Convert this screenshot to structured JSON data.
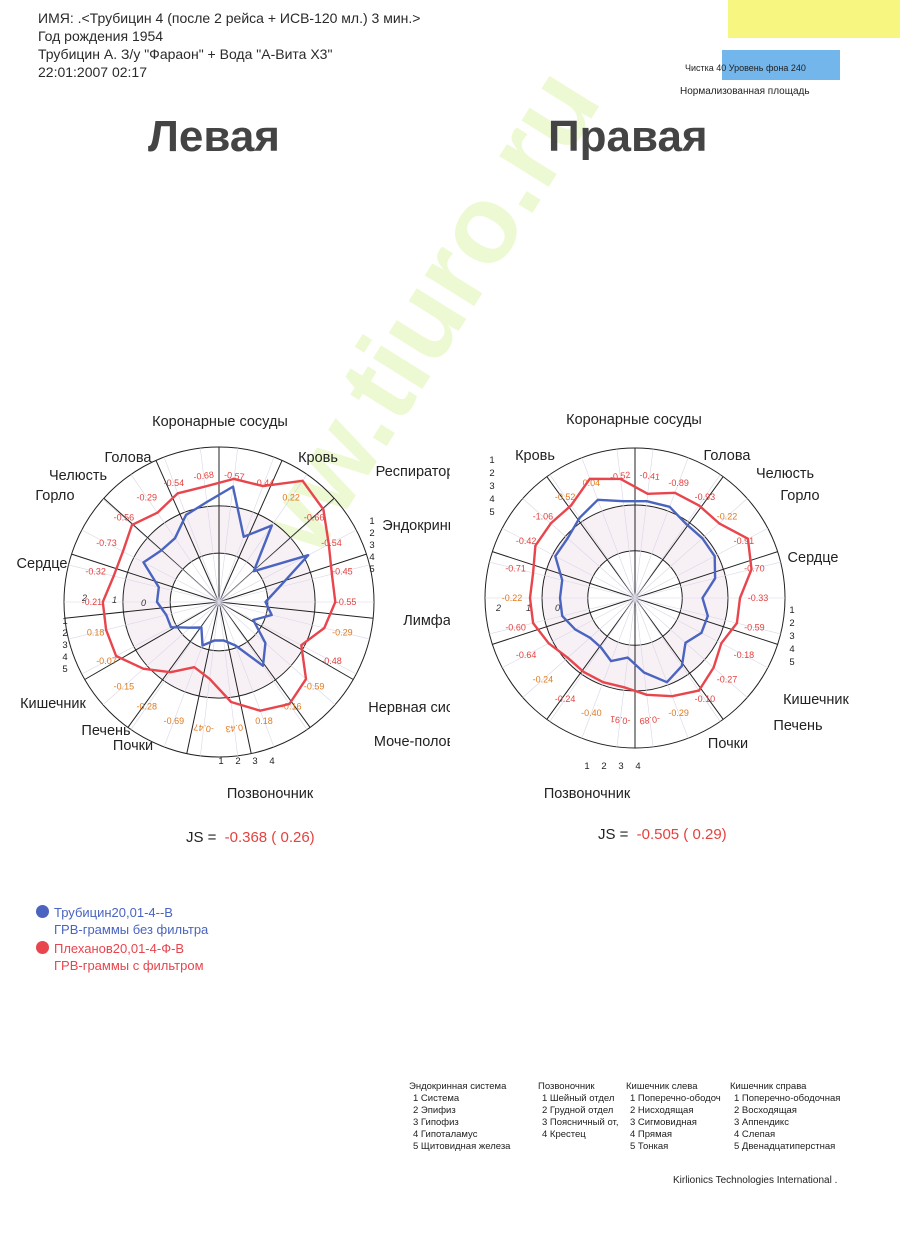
{
  "header": {
    "line1": "ИМЯ:   .<Трубицин 4 (после 2 рейса + ИСВ-120 мл.) 3 мин.>",
    "line2": "Год рождения 1954",
    "line3": "Трубицин А. З/у \"Фараон\" + Вода \"А-Вита Х3\"",
    "line4": "22:01:2007   02:17"
  },
  "meta": {
    "purity": "Чистка  40   Уровень фона  240",
    "area": "Нормализованная площадь"
  },
  "watermark": "www.tiuro.ru",
  "colors": {
    "blue": "#4a64c0",
    "red": "#e8454c",
    "value_red": "#e3423f",
    "value_orange": "#e07a1e"
  },
  "chart_data": [
    {
      "type": "radar",
      "title": "Левая",
      "js_label": "JS =",
      "js_value": "-0.368 ( 0.26)",
      "rings": [
        "0",
        "1",
        "2"
      ],
      "sector_labels": [
        {
          "text": "Коронарные сосуды"
        },
        {
          "text": "Кровь"
        },
        {
          "text": "Респираторная"
        },
        {
          "text": "Эндокринная"
        },
        {
          "text": "Лимфа"
        },
        {
          "text": "Нервная система"
        },
        {
          "text": "Моче-половая"
        },
        {
          "text": "Позвоночник"
        },
        {
          "text": "Почки"
        },
        {
          "text": "Печень"
        },
        {
          "text": "Кишечник"
        },
        {
          "text": "Сердце"
        },
        {
          "text": "Горло"
        },
        {
          "text": "Челюсть"
        },
        {
          "text": "Голова"
        }
      ],
      "values": [
        "-0.57",
        "-0.44",
        "0.22",
        "-0.66",
        "-0.54",
        "-0.45",
        "-0.55",
        "-0.29",
        "-0.48",
        "-0.59",
        "-0.16",
        "0.18",
        "0.43",
        "-0.47",
        "-0.69",
        "-0.28",
        "-0.15",
        "-0.07",
        "0.18",
        "-0.21",
        "-0.32",
        "-0.73",
        "-0.56",
        "-0.29",
        "-0.54",
        "-0.68"
      ],
      "value_orange_idx": [
        2,
        7,
        9,
        10,
        11,
        12,
        13,
        14,
        15,
        16,
        17,
        18
      ],
      "sub_index_groups": [
        {
          "labels": [
            "1",
            "2",
            "3",
            "4",
            "5"
          ]
        },
        {
          "labels": [
            "1",
            "2",
            "3",
            "4"
          ]
        },
        {
          "labels": [
            "1",
            "2",
            "3",
            "4",
            "5"
          ]
        }
      ],
      "series": [
        {
          "name": "Трубицин20,01-4--В",
          "color": "#4a64c0",
          "values": [
            1.5,
            0.9,
            1.2,
            0.6,
            1.3,
            0.8,
            0.6,
            0.7,
            0.5,
            0.8,
            1.0,
            0.6,
            0.5,
            0.5,
            0.6,
            0.4,
            0.5,
            0.7,
            0.7,
            0.8,
            0.8,
            1.1,
            1.0,
            1.0,
            1.2,
            1.3
          ]
        },
        {
          "name": "Плеханов20,01-4-Ф-В",
          "color": "#e8454c",
          "values": [
            1.6,
            1.6,
            1.9,
            1.8,
            1.6,
            1.5,
            1.5,
            1.4,
            1.2,
            1.5,
            1.6,
            1.5,
            1.3,
            1.0,
            0.9,
            1.1,
            1.3,
            1.5,
            1.5,
            1.5,
            1.4,
            1.4,
            1.5,
            1.4,
            1.5,
            1.5
          ]
        }
      ]
    },
    {
      "type": "radar",
      "title": "Правая",
      "js_label": "JS =",
      "js_value": "-0.505 ( 0.29)",
      "rings": [
        "0",
        "1",
        "2"
      ],
      "sector_labels": [
        {
          "text": "Коронарные сосуды"
        },
        {
          "text": "Голова"
        },
        {
          "text": "Челюсть"
        },
        {
          "text": "Горло"
        },
        {
          "text": "Сердце"
        },
        {
          "text": "Кишечник"
        },
        {
          "text": "Печень"
        },
        {
          "text": "Почки"
        },
        {
          "text": "Позвоночник"
        },
        {
          "text": "Кровь"
        }
      ],
      "values": [
        "-0.41",
        "-0.89",
        "-0.93",
        "-0.22",
        "-0.91",
        "-0.70",
        "-0.33",
        "-0.59",
        "-0.18",
        "-0.27",
        "-0.10",
        "-0.29",
        "-0.89",
        "-0.91",
        "-0.40",
        "-0.24",
        "-0.24",
        "-0.64",
        "-0.60",
        "-0.22",
        "-0.71",
        "-0.42",
        "-1.06",
        "-0.52",
        "0.04",
        "-0.52"
      ],
      "value_orange_idx": [
        3,
        11,
        14,
        16,
        19,
        23,
        24
      ],
      "sub_index_groups": [
        {
          "labels": [
            "1",
            "2",
            "3",
            "4",
            "5"
          ]
        },
        {
          "labels": [
            "4",
            "3",
            "2",
            "1"
          ]
        },
        {
          "labels": [
            "1",
            "2",
            "3",
            "4",
            "5"
          ]
        }
      ],
      "series": [
        {
          "name": "Трубицин20,01-4--В",
          "color": "#4a64c0",
          "values": [
            1.3,
            1.3,
            1.2,
            1.2,
            1.2,
            1.1,
            0.9,
            1.0,
            1.0,
            0.9,
            1.1,
            1.2,
            1.0,
            0.8,
            0.9,
            0.8,
            0.8,
            0.9,
            1.0,
            1.0,
            1.0,
            1.2,
            1.2,
            1.3,
            1.4,
            1.3
          ]
        },
        {
          "name": "Плеханов20,01-4-Ф-В",
          "color": "#e8454c",
          "values": [
            1.4,
            1.5,
            1.5,
            1.5,
            1.7,
            1.6,
            1.4,
            1.4,
            1.3,
            1.4,
            1.5,
            1.4,
            1.3,
            1.2,
            1.2,
            1.2,
            1.2,
            1.3,
            1.4,
            1.4,
            1.4,
            1.5,
            1.5,
            1.5,
            1.7,
            1.6
          ]
        }
      ]
    }
  ],
  "legend": [
    {
      "name": "Трубицин20,01-4--В",
      "sub": "ГРВ-граммы без фильтра",
      "color": "#4a64c0"
    },
    {
      "name": "Плеханов20,01-4-Ф-В",
      "sub": "ГРВ-граммы с фильтром",
      "color": "#e8454c"
    }
  ],
  "key": [
    {
      "title": "Эндокринная система",
      "items": [
        "1  Система",
        "2  Эпифиз",
        "3  Гипофиз",
        "4  Гипоталамус",
        "5  Щитовидная железа"
      ]
    },
    {
      "title": "Позвоночник",
      "items": [
        "1  Шейный отдел",
        "2  Грудной отдел",
        "3  Поясничный от,",
        "4  Крестец"
      ]
    },
    {
      "title": "Кишечник слева",
      "items": [
        "1  Поперечно-ободоч",
        "2  Нисходящая",
        "3  Сигмовидная",
        "4  Прямая",
        "5  Тонкая"
      ]
    },
    {
      "title": "Кишечник справа",
      "items": [
        "1  Поперечно-ободочная",
        "2  Восходящая",
        "3  Аппендикс",
        "4  Слепая",
        "5  Двенадцатиперстная"
      ]
    }
  ],
  "footer": "Kirlionics Technologies International ."
}
